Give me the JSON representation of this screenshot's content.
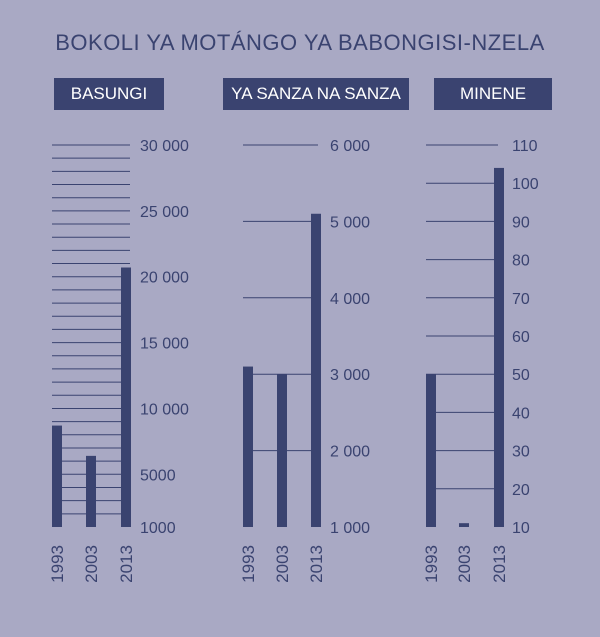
{
  "title": "BOKOLI YA MOTÁNGO YA BABONGISI-NZELA",
  "colors": {
    "background": "#a9a9c4",
    "bar": "#3a4370",
    "line": "#3a4370"
  },
  "chart_data": [
    {
      "type": "bar",
      "header": "BASUNGI",
      "categories": [
        "1993",
        "2003",
        "2013"
      ],
      "values": [
        8700,
        6400,
        20700
      ],
      "ylim": [
        1000,
        30000
      ],
      "ticks": [
        1000,
        5000,
        10000,
        15000,
        20000,
        25000,
        30000
      ],
      "tick_labels": [
        "1000",
        "5000",
        "10 000",
        "15 000",
        "20 000",
        "25 000",
        "30 000"
      ],
      "grid_step": 1000
    },
    {
      "type": "bar",
      "header": "YA SANZA NA SANZA",
      "categories": [
        "1993",
        "2003",
        "2013"
      ],
      "values": [
        3100,
        3000,
        5100
      ],
      "ylim": [
        1000,
        6000
      ],
      "ticks": [
        1000,
        2000,
        3000,
        4000,
        5000,
        6000
      ],
      "tick_labels": [
        "1 000",
        "2 000",
        "3 000",
        "4 000",
        "5 000",
        "6 000"
      ],
      "grid_step": 1000
    },
    {
      "type": "bar",
      "header": "MINENE",
      "categories": [
        "1993",
        "2003",
        "2013"
      ],
      "values": [
        50,
        11,
        104
      ],
      "ylim": [
        10,
        110
      ],
      "ticks": [
        10,
        20,
        30,
        40,
        50,
        60,
        70,
        80,
        90,
        100,
        110
      ],
      "tick_labels": [
        "10",
        "20",
        "30",
        "40",
        "50",
        "60",
        "70",
        "80",
        "90",
        "100",
        "110"
      ],
      "grid_step": 10
    }
  ]
}
